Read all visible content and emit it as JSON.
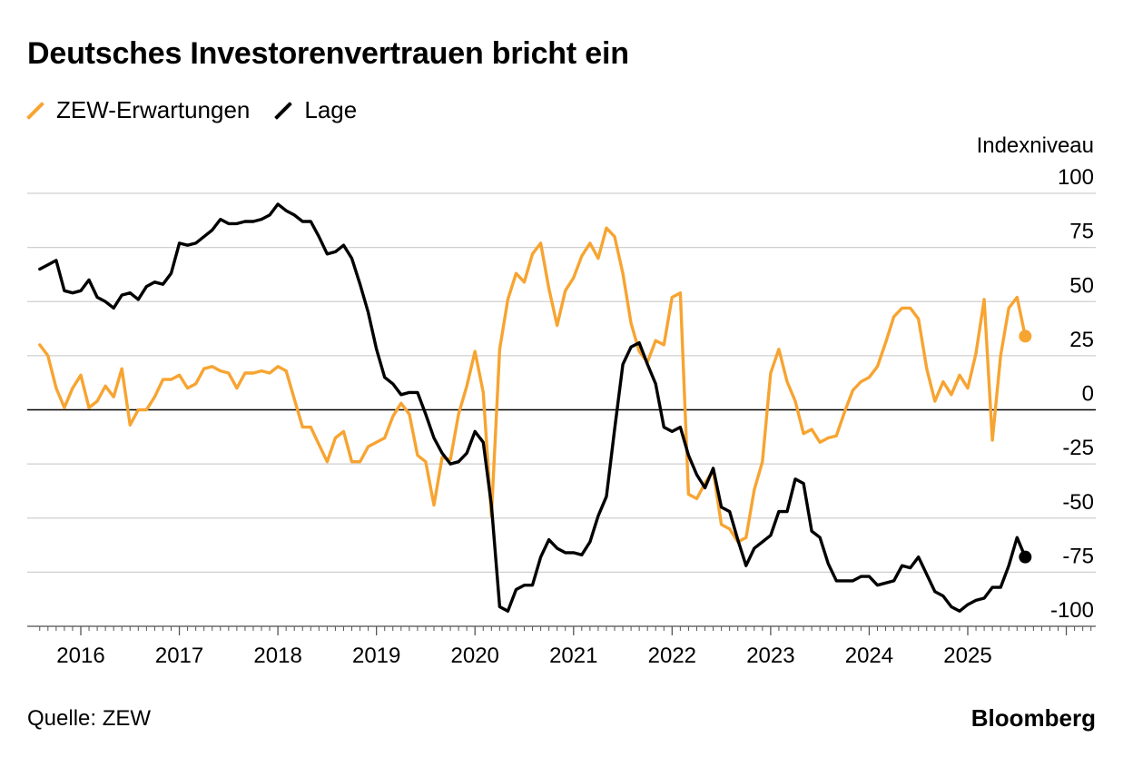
{
  "title": "Deutsches Investorenvertrauen bricht ein",
  "source": "Quelle: ZEW",
  "brand": "Bloomberg",
  "colors": {
    "expectations": "#f7a431",
    "situation": "#000000",
    "grid": "#cfcfcf",
    "zero": "#000000"
  },
  "chart_data": {
    "type": "line",
    "title": "Deutsches Investorenvertrauen bricht ein",
    "ylabel": "Indexniveau",
    "ylim": [
      -100,
      100
    ],
    "yticks": [
      100,
      75,
      50,
      25,
      0,
      -25,
      -50,
      -75,
      -100
    ],
    "xticks": [
      "2016",
      "2017",
      "2018",
      "2019",
      "2020",
      "2021",
      "2022",
      "2023",
      "2024",
      "2025"
    ],
    "grid": true,
    "legend_position": "top-left",
    "series": [
      {
        "name": "ZEW-Erwartungen",
        "color": "#f7a431",
        "points": [
          [
            "2015-08",
            30
          ],
          [
            "2015-09",
            25
          ],
          [
            "2015-10",
            10
          ],
          [
            "2015-11",
            1
          ],
          [
            "2015-12",
            10
          ],
          [
            "2016-01",
            16
          ],
          [
            "2016-02",
            1
          ],
          [
            "2016-03",
            4
          ],
          [
            "2016-04",
            11
          ],
          [
            "2016-05",
            6
          ],
          [
            "2016-06",
            19
          ],
          [
            "2016-07",
            -7
          ],
          [
            "2016-08",
            0
          ],
          [
            "2016-09",
            0
          ],
          [
            "2016-10",
            6
          ],
          [
            "2016-11",
            14
          ],
          [
            "2016-12",
            14
          ],
          [
            "2017-01",
            16
          ],
          [
            "2017-02",
            10
          ],
          [
            "2017-03",
            12
          ],
          [
            "2017-04",
            19
          ],
          [
            "2017-05",
            20
          ],
          [
            "2017-06",
            18
          ],
          [
            "2017-07",
            17
          ],
          [
            "2017-08",
            10
          ],
          [
            "2017-09",
            17
          ],
          [
            "2017-10",
            17
          ],
          [
            "2017-11",
            18
          ],
          [
            "2017-12",
            17
          ],
          [
            "2018-01",
            20
          ],
          [
            "2018-02",
            18
          ],
          [
            "2018-03",
            5
          ],
          [
            "2018-04",
            -8
          ],
          [
            "2018-05",
            -8
          ],
          [
            "2018-06",
            -16
          ],
          [
            "2018-07",
            -24
          ],
          [
            "2018-08",
            -13
          ],
          [
            "2018-09",
            -10
          ],
          [
            "2018-10",
            -24
          ],
          [
            "2018-11",
            -24
          ],
          [
            "2018-12",
            -17
          ],
          [
            "2019-01",
            -15
          ],
          [
            "2019-02",
            -13
          ],
          [
            "2019-03",
            -3
          ],
          [
            "2019-04",
            3
          ],
          [
            "2019-05",
            -2
          ],
          [
            "2019-06",
            -21
          ],
          [
            "2019-07",
            -24
          ],
          [
            "2019-08",
            -44
          ],
          [
            "2019-09",
            -22
          ],
          [
            "2019-10",
            -23
          ],
          [
            "2019-11",
            -2
          ],
          [
            "2019-12",
            11
          ],
          [
            "2020-01",
            27
          ],
          [
            "2020-02",
            8
          ],
          [
            "2020-03",
            -49
          ],
          [
            "2020-04",
            28
          ],
          [
            "2020-05",
            51
          ],
          [
            "2020-06",
            63
          ],
          [
            "2020-07",
            59
          ],
          [
            "2020-08",
            72
          ],
          [
            "2020-09",
            77
          ],
          [
            "2020-10",
            56
          ],
          [
            "2020-11",
            39
          ],
          [
            "2020-12",
            55
          ],
          [
            "2021-01",
            61
          ],
          [
            "2021-02",
            71
          ],
          [
            "2021-03",
            77
          ],
          [
            "2021-04",
            70
          ],
          [
            "2021-05",
            84
          ],
          [
            "2021-06",
            80
          ],
          [
            "2021-07",
            63
          ],
          [
            "2021-08",
            40
          ],
          [
            "2021-09",
            27
          ],
          [
            "2021-10",
            22
          ],
          [
            "2021-11",
            32
          ],
          [
            "2021-12",
            30
          ],
          [
            "2022-01",
            52
          ],
          [
            "2022-02",
            54
          ],
          [
            "2022-03",
            -39
          ],
          [
            "2022-04",
            -41
          ],
          [
            "2022-05",
            -34
          ],
          [
            "2022-06",
            -28
          ],
          [
            "2022-07",
            -53
          ],
          [
            "2022-08",
            -55
          ],
          [
            "2022-09",
            -61
          ],
          [
            "2022-10",
            -59
          ],
          [
            "2022-11",
            -37
          ],
          [
            "2022-12",
            -24
          ],
          [
            "2023-01",
            17
          ],
          [
            "2023-02",
            28
          ],
          [
            "2023-03",
            13
          ],
          [
            "2023-04",
            4
          ],
          [
            "2023-05",
            -11
          ],
          [
            "2023-06",
            -9
          ],
          [
            "2023-07",
            -15
          ],
          [
            "2023-08",
            -13
          ],
          [
            "2023-09",
            -12
          ],
          [
            "2023-10",
            -1
          ],
          [
            "2023-11",
            9
          ],
          [
            "2023-12",
            13
          ],
          [
            "2024-01",
            15
          ],
          [
            "2024-02",
            20
          ],
          [
            "2024-03",
            31
          ],
          [
            "2024-04",
            43
          ],
          [
            "2024-05",
            47
          ],
          [
            "2024-06",
            47
          ],
          [
            "2024-07",
            42
          ],
          [
            "2024-08",
            19
          ],
          [
            "2024-09",
            4
          ],
          [
            "2024-10",
            13
          ],
          [
            "2024-11",
            7
          ],
          [
            "2024-12",
            16
          ],
          [
            "2025-01",
            10
          ],
          [
            "2025-02",
            26
          ],
          [
            "2025-03",
            51
          ],
          [
            "2025-04",
            -14
          ],
          [
            "2025-05",
            25
          ],
          [
            "2025-06",
            47
          ],
          [
            "2025-07",
            52
          ],
          [
            "2025-08",
            34
          ]
        ]
      },
      {
        "name": "Lage",
        "color": "#000000",
        "points": [
          [
            "2015-08",
            65
          ],
          [
            "2015-09",
            67
          ],
          [
            "2015-10",
            69
          ],
          [
            "2015-11",
            55
          ],
          [
            "2015-12",
            54
          ],
          [
            "2016-01",
            55
          ],
          [
            "2016-02",
            60
          ],
          [
            "2016-03",
            52
          ],
          [
            "2016-04",
            50
          ],
          [
            "2016-05",
            47
          ],
          [
            "2016-06",
            53
          ],
          [
            "2016-07",
            54
          ],
          [
            "2016-08",
            51
          ],
          [
            "2016-09",
            57
          ],
          [
            "2016-10",
            59
          ],
          [
            "2016-11",
            58
          ],
          [
            "2016-12",
            63
          ],
          [
            "2017-01",
            77
          ],
          [
            "2017-02",
            76
          ],
          [
            "2017-03",
            77
          ],
          [
            "2017-04",
            80
          ],
          [
            "2017-05",
            83
          ],
          [
            "2017-06",
            88
          ],
          [
            "2017-07",
            86
          ],
          [
            "2017-08",
            86
          ],
          [
            "2017-09",
            87
          ],
          [
            "2017-10",
            87
          ],
          [
            "2017-11",
            88
          ],
          [
            "2017-12",
            90
          ],
          [
            "2018-01",
            95
          ],
          [
            "2018-02",
            92
          ],
          [
            "2018-03",
            90
          ],
          [
            "2018-04",
            87
          ],
          [
            "2018-05",
            87
          ],
          [
            "2018-06",
            80
          ],
          [
            "2018-07",
            72
          ],
          [
            "2018-08",
            73
          ],
          [
            "2018-09",
            76
          ],
          [
            "2018-10",
            70
          ],
          [
            "2018-11",
            58
          ],
          [
            "2018-12",
            45
          ],
          [
            "2019-01",
            28
          ],
          [
            "2019-02",
            15
          ],
          [
            "2019-03",
            12
          ],
          [
            "2019-04",
            7
          ],
          [
            "2019-05",
            8
          ],
          [
            "2019-06",
            8
          ],
          [
            "2019-07",
            -2
          ],
          [
            "2019-08",
            -13
          ],
          [
            "2019-09",
            -20
          ],
          [
            "2019-10",
            -25
          ],
          [
            "2019-11",
            -24
          ],
          [
            "2019-12",
            -20
          ],
          [
            "2020-01",
            -10
          ],
          [
            "2020-02",
            -15
          ],
          [
            "2020-03",
            -44
          ],
          [
            "2020-04",
            -91
          ],
          [
            "2020-05",
            -93
          ],
          [
            "2020-06",
            -83
          ],
          [
            "2020-07",
            -81
          ],
          [
            "2020-08",
            -81
          ],
          [
            "2020-09",
            -68
          ],
          [
            "2020-10",
            -60
          ],
          [
            "2020-11",
            -64
          ],
          [
            "2020-12",
            -66
          ],
          [
            "2021-01",
            -66
          ],
          [
            "2021-02",
            -67
          ],
          [
            "2021-03",
            -61
          ],
          [
            "2021-04",
            -49
          ],
          [
            "2021-05",
            -40
          ],
          [
            "2021-06",
            -9
          ],
          [
            "2021-07",
            21
          ],
          [
            "2021-08",
            29
          ],
          [
            "2021-09",
            31
          ],
          [
            "2021-10",
            21
          ],
          [
            "2021-11",
            12
          ],
          [
            "2021-12",
            -8
          ],
          [
            "2022-01",
            -10
          ],
          [
            "2022-02",
            -8
          ],
          [
            "2022-03",
            -21
          ],
          [
            "2022-04",
            -30
          ],
          [
            "2022-05",
            -36
          ],
          [
            "2022-06",
            -27
          ],
          [
            "2022-07",
            -45
          ],
          [
            "2022-08",
            -47
          ],
          [
            "2022-09",
            -60
          ],
          [
            "2022-10",
            -72
          ],
          [
            "2022-11",
            -64
          ],
          [
            "2022-12",
            -61
          ],
          [
            "2023-01",
            -58
          ],
          [
            "2023-02",
            -47
          ],
          [
            "2023-03",
            -47
          ],
          [
            "2023-04",
            -32
          ],
          [
            "2023-05",
            -34
          ],
          [
            "2023-06",
            -56
          ],
          [
            "2023-07",
            -59
          ],
          [
            "2023-08",
            -71
          ],
          [
            "2023-09",
            -79
          ],
          [
            "2023-10",
            -79
          ],
          [
            "2023-11",
            -79
          ],
          [
            "2023-12",
            -77
          ],
          [
            "2024-01",
            -77
          ],
          [
            "2024-02",
            -81
          ],
          [
            "2024-03",
            -80
          ],
          [
            "2024-04",
            -79
          ],
          [
            "2024-05",
            -72
          ],
          [
            "2024-06",
            -73
          ],
          [
            "2024-07",
            -68
          ],
          [
            "2024-08",
            -76
          ],
          [
            "2024-09",
            -84
          ],
          [
            "2024-10",
            -86
          ],
          [
            "2024-11",
            -91
          ],
          [
            "2024-12",
            -93
          ],
          [
            "2025-01",
            -90
          ],
          [
            "2025-02",
            -88
          ],
          [
            "2025-03",
            -87
          ],
          [
            "2025-04",
            -82
          ],
          [
            "2025-05",
            -82
          ],
          [
            "2025-06",
            -72
          ],
          [
            "2025-07",
            -59
          ],
          [
            "2025-08",
            -68
          ]
        ]
      }
    ]
  }
}
